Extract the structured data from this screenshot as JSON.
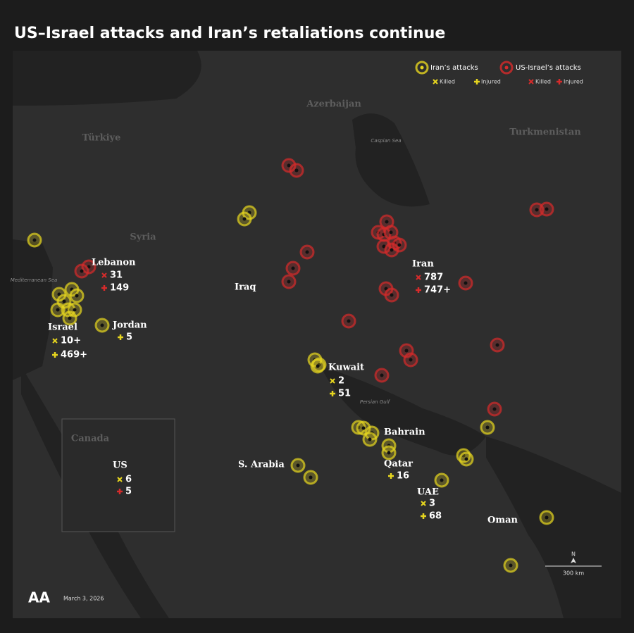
{
  "title": "US–Israel attacks and Iran’s retaliations continue",
  "legend": {
    "iran": "Iran’s attacks",
    "us_israel": "US-Israel’s attacks",
    "killed": "Killed",
    "injured": "Injured"
  },
  "region_labels": [
    "Azerbaijan",
    "Türkiye",
    "Turkmenistan",
    "Syria",
    "Canada"
  ],
  "sea_labels": [
    "Caspian Sea",
    "Mediterranean Sea",
    "Persian Gulf"
  ],
  "places": [
    "Iraq",
    "S. Arabia",
    "Oman",
    "Bahrain"
  ],
  "casualties": [
    {
      "place": "Lebanon",
      "killed": 31,
      "injured": 149
    },
    {
      "place": "Iran",
      "killed": 787,
      "injured": "747+"
    },
    {
      "place": "Israel",
      "killed": "10+",
      "injured": "469+"
    },
    {
      "place": "Jordan",
      "injured": 5
    },
    {
      "place": "Kuwait",
      "killed": 2,
      "injured": 51
    },
    {
      "place": "Qatar",
      "injured": 16
    },
    {
      "place": "UAE",
      "killed": 3,
      "injured": 68
    },
    {
      "place": "US",
      "killed": 6,
      "injured": 5
    }
  ],
  "north": "N",
  "scale": "300 km",
  "date": "March 3, 2026",
  "logo": "AA"
}
